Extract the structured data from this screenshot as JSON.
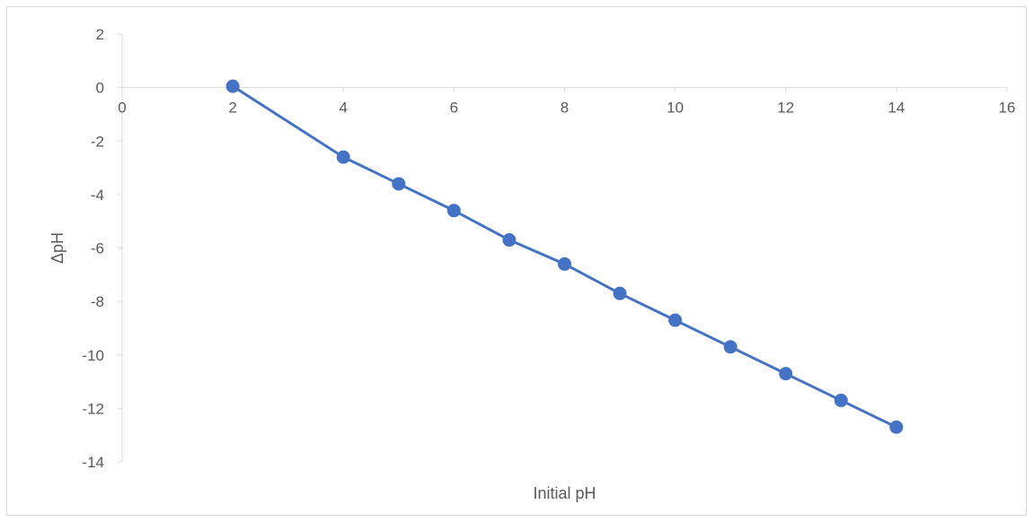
{
  "chart_data": {
    "type": "line",
    "title": "",
    "xlabel": "Initial pH",
    "ylabel": "ΔpH",
    "xlim": [
      0,
      16
    ],
    "ylim": [
      -14,
      2
    ],
    "x_ticks": [
      0,
      2,
      4,
      6,
      8,
      10,
      12,
      14,
      16
    ],
    "y_ticks": [
      2,
      0,
      -2,
      -4,
      -6,
      -8,
      -10,
      -12,
      -14
    ],
    "x_tick_labels": [
      "0",
      "2",
      "4",
      "6",
      "8",
      "10",
      "12",
      "14",
      "16"
    ],
    "y_tick_labels": [
      "2",
      "0",
      "-2",
      "-4",
      "-6",
      "-8",
      "-10",
      "-12",
      "-14"
    ],
    "grid": false,
    "legend": "none",
    "series": [
      {
        "color": "#4472c4",
        "marker": "circle",
        "x": [
          2,
          4,
          5,
          6,
          7,
          8,
          9,
          10,
          11,
          12,
          13,
          14
        ],
        "y": [
          0.05,
          -2.6,
          -3.6,
          -4.6,
          -5.7,
          -6.6,
          -7.7,
          -8.7,
          -9.7,
          -10.7,
          -11.7,
          -12.7
        ]
      }
    ]
  }
}
